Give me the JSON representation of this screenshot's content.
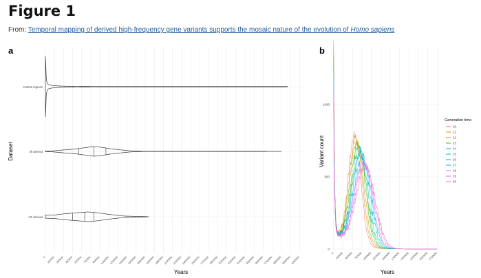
{
  "header": {
    "figure_title": "Figure 1",
    "from_label": "From:",
    "article_link_text": "Temporal mapping of derived high-frequency gene variants supports the mosaic nature of the evolution of",
    "article_link_italic": "Homo sapiens"
  },
  "colors": {
    "gridline": "#ebebeb",
    "outline": "#333333",
    "link": "#1f5c99"
  },
  "chart_data": [
    {
      "panel": "a",
      "type": "violin",
      "orientation": "horizontal",
      "xlabel": "Years",
      "ylabel": "Dataset",
      "xlim": [
        0,
        4300000
      ],
      "x_ticks": [
        0,
        150000,
        300000,
        450000,
        600000,
        750000,
        900000,
        1050000,
        1200000,
        1350000,
        1500000,
        1650000,
        1800000,
        1950000,
        2100000,
        2250000,
        2400000,
        2550000,
        2700000,
        2850000,
        3000000,
        3150000,
        3300000,
        3450000,
        3600000,
        3750000,
        3900000,
        4050000,
        4200000
      ],
      "x_tick_labels": [
        "0",
        "150000",
        "300000",
        "450000",
        "600000",
        "750000",
        "900000",
        "1050000",
        "1200000",
        "1350000",
        "1500000",
        "1650000",
        "1800000",
        "1950000",
        "2100000",
        "2250000",
        "2400000",
        "2550000",
        "2700000",
        "2850000",
        "3000000",
        "3150000",
        "3300000",
        "3450000",
        "3600000",
        "3750000",
        "3900000",
        "4050000",
        "4200000"
      ],
      "categories": [
        "Control regions",
        "All derived",
        "HF derived"
      ],
      "violins": [
        {
          "category": "Control regions",
          "min": 0,
          "max": 4000000,
          "quartiles": [],
          "profile_x": [
            0,
            5000,
            15000,
            30000,
            60000,
            120000,
            250000,
            500000,
            1000000,
            4000000
          ],
          "profile_w": [
            1.0,
            0.8,
            0.25,
            0.1,
            0.06,
            0.04,
            0.02,
            0.01,
            0.005,
            0.005
          ]
        },
        {
          "category": "All derived",
          "min": 0,
          "max": 3900000,
          "quartiles": [
            550000,
            800000,
            1000000
          ],
          "profile_x": [
            0,
            100000,
            300000,
            500000,
            700000,
            800000,
            900000,
            1100000,
            1400000,
            1600000,
            3900000
          ],
          "profile_w": [
            0.1,
            0.08,
            0.3,
            0.5,
            0.85,
            1.0,
            0.9,
            0.5,
            0.12,
            0.03,
            0.01
          ]
        },
        {
          "category": "HF derived",
          "min": 0,
          "max": 1700000,
          "quartiles": [
            450000,
            650000,
            800000
          ],
          "profile_x": [
            0,
            150000,
            300000,
            450000,
            600000,
            700000,
            850000,
            1050000,
            1300000,
            1700000
          ],
          "profile_w": [
            0.3,
            0.35,
            0.6,
            0.75,
            0.9,
            1.0,
            0.85,
            0.5,
            0.15,
            0.02
          ]
        }
      ]
    },
    {
      "panel": "b",
      "type": "line",
      "xlabel": "Years",
      "ylabel": "Variant count",
      "xlim": [
        -50000,
        2800000
      ],
      "ylim": [
        0,
        1400
      ],
      "x_ticks": [
        0,
        250000,
        500000,
        750000,
        1000000,
        1250000,
        1500000,
        1750000,
        2000000,
        2250000,
        2500000,
        2750000
      ],
      "x_tick_labels": [
        "0",
        "250000",
        "500000",
        "750000",
        "1000000",
        "1250000",
        "1500000",
        "1750000",
        "2000000",
        "2250000",
        "2500000",
        "2750000"
      ],
      "y_ticks": [
        0,
        500,
        1000
      ],
      "y_tick_labels": [
        "0",
        "500",
        "1000"
      ],
      "legend_title": "Generation time",
      "legend_position": "right",
      "series": [
        {
          "name": "20",
          "color": "#f8766d",
          "peak_x": 560000,
          "peak_y": 760
        },
        {
          "name": "21",
          "color": "#db8e00",
          "peak_x": 590000,
          "peak_y": 740
        },
        {
          "name": "22",
          "color": "#aea200",
          "peak_x": 620000,
          "peak_y": 720
        },
        {
          "name": "23",
          "color": "#64b200",
          "peak_x": 650000,
          "peak_y": 700
        },
        {
          "name": "24",
          "color": "#00bd5c",
          "peak_x": 675000,
          "peak_y": 680
        },
        {
          "name": "25",
          "color": "#00c1a7",
          "peak_x": 705000,
          "peak_y": 660
        },
        {
          "name": "26",
          "color": "#00bade",
          "peak_x": 735000,
          "peak_y": 640
        },
        {
          "name": "27",
          "color": "#00a6ff",
          "peak_x": 765000,
          "peak_y": 620
        },
        {
          "name": "28",
          "color": "#b385ff",
          "peak_x": 790000,
          "peak_y": 600
        },
        {
          "name": "29",
          "color": "#ef67eb",
          "peak_x": 820000,
          "peak_y": 580
        },
        {
          "name": "30",
          "color": "#ff63b6",
          "peak_x": 850000,
          "peak_y": 560
        }
      ]
    }
  ]
}
